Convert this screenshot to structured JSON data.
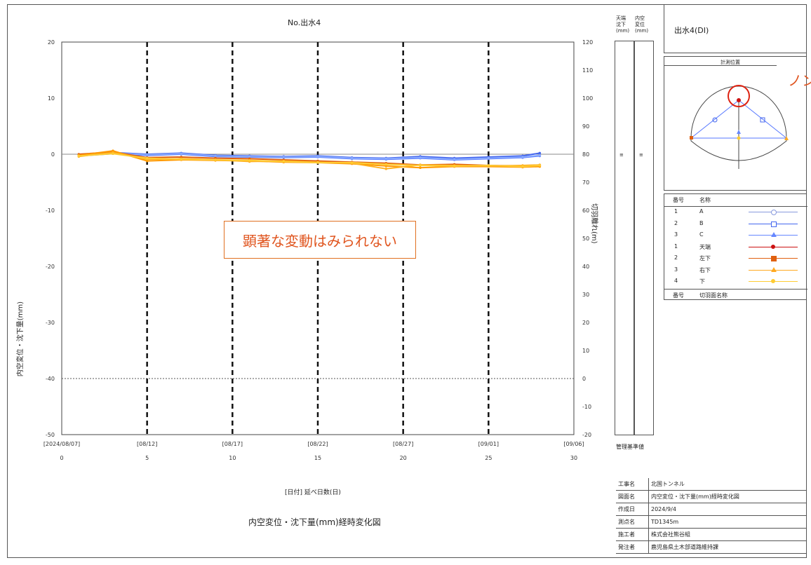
{
  "chart_data": {
    "type": "line",
    "title": "No.出水4",
    "ylabel": "内空変位・沈下量(mm)",
    "y2label": "切羽離れ(m)",
    "xlabel": "[日付] 延べ日数(日)",
    "caption": "内空変位・沈下量(mm)経時変化図",
    "ylim": [
      -50,
      20
    ],
    "yticks": [
      20,
      10,
      0,
      -10,
      -20,
      -30,
      -40,
      -50
    ],
    "y2lim": [
      -20,
      120
    ],
    "y2ticks": [
      120,
      110,
      100,
      90,
      80,
      70,
      60,
      50,
      40,
      30,
      20,
      10,
      0,
      -10,
      -20
    ],
    "xlim": [
      0,
      30
    ],
    "xticks": [
      0,
      5,
      10,
      15,
      20,
      25,
      30
    ],
    "date_ticks": [
      "[2024/08/07]",
      "[08/12]",
      "[08/17]",
      "[08/22]",
      "[08/27]",
      "[09/01]",
      "[09/06]"
    ],
    "vlines": [
      5,
      10,
      15,
      20,
      25
    ],
    "ref_line_y": -40,
    "series": [
      {
        "name": "A",
        "color": "#4466ee",
        "x": [
          1,
          3,
          5,
          7,
          9,
          11,
          13,
          15,
          17,
          19,
          21,
          23,
          25,
          27,
          28
        ],
        "values": [
          -0.2,
          0.3,
          0,
          0.2,
          -0.2,
          -0.3,
          -0.4,
          -0.3,
          -0.6,
          -0.7,
          -0.4,
          -0.7,
          -0.5,
          -0.3,
          0.2
        ]
      },
      {
        "name": "B",
        "color": "#5577ff",
        "x": [
          1,
          3,
          5,
          7,
          9,
          11,
          13,
          15,
          17,
          19,
          21,
          23,
          25,
          27,
          28
        ],
        "values": [
          -0.3,
          0.1,
          -0.2,
          0,
          -0.4,
          -0.5,
          -0.6,
          -0.5,
          -0.8,
          -0.9,
          -0.7,
          -1.0,
          -0.8,
          -0.6,
          -0.3
        ]
      },
      {
        "name": "C",
        "color": "#88aaff",
        "x": [
          1,
          3,
          5,
          7,
          9,
          11,
          13,
          15,
          17,
          19,
          21,
          23,
          25,
          27,
          28
        ],
        "values": [
          -0.1,
          0.2,
          -0.1,
          0.1,
          -0.3,
          -0.4,
          -0.5,
          -0.4,
          -0.7,
          -0.8,
          -0.6,
          -0.9,
          -0.7,
          -0.5,
          -0.2
        ]
      },
      {
        "name": "天端",
        "color": "#e06010",
        "x": [
          1,
          3,
          5,
          7,
          9,
          11,
          13,
          15,
          17,
          19,
          21,
          23,
          25,
          27,
          28
        ],
        "values": [
          0,
          0.4,
          -0.6,
          -0.5,
          -0.7,
          -0.8,
          -1.0,
          -1.2,
          -1.4,
          -1.6,
          -1.9,
          -1.8,
          -2.0,
          -2.1,
          -2.0
        ]
      },
      {
        "name": "左下",
        "color": "#ff9900",
        "x": [
          1,
          3,
          5,
          7,
          9,
          11,
          13,
          15,
          17,
          19,
          21,
          23,
          25,
          27,
          28
        ],
        "values": [
          -0.2,
          0.6,
          -1.2,
          -1.0,
          -1.1,
          -1.2,
          -1.4,
          -1.5,
          -1.7,
          -2.1,
          -2.4,
          -2.2,
          -2.2,
          -2.3,
          -2.2
        ]
      },
      {
        "name": "右下",
        "color": "#ffb020",
        "x": [
          1,
          3,
          5,
          7,
          9,
          11,
          13,
          15,
          17,
          19,
          21,
          23,
          25,
          27,
          28
        ],
        "values": [
          -0.4,
          0.3,
          -0.9,
          -0.8,
          -1.0,
          -1.3,
          -1.2,
          -1.4,
          -1.6,
          -2.6,
          -1.9,
          -2.0,
          -2.1,
          -2.0,
          -1.9
        ]
      },
      {
        "name": "下",
        "color": "#ffcc33",
        "x": [
          1,
          3,
          5,
          7,
          9,
          11,
          13,
          15,
          17,
          19,
          21,
          23,
          25,
          27,
          28
        ],
        "values": [
          -0.3,
          0.1,
          -0.7,
          -0.9,
          -1.0,
          -1.1,
          -1.3,
          -1.5,
          -1.5,
          -1.8,
          -2.0,
          -2.1,
          -2.0,
          -2.2,
          -2.0
        ]
      }
    ],
    "annotation": "顕著な変動はみられない"
  },
  "side": {
    "col1": "天端\n沈下\n(mm)",
    "col2": "内空\n変位\n(mm)",
    "footer": "管理基準値"
  },
  "panel": {
    "title": "出水4(DⅠ)",
    "diagram_title": "計測位置",
    "overlay_text": "ノン",
    "legend_header_no": "番号",
    "legend_header_name": "名称",
    "legend_rows": [
      {
        "no": "1",
        "name": "A",
        "color": "#8899dd",
        "marker": "circle"
      },
      {
        "no": "2",
        "name": "B",
        "color": "#4466ee",
        "marker": "square"
      },
      {
        "no": "3",
        "name": "C",
        "color": "#6688ff",
        "marker": "triangle"
      },
      {
        "no": "1",
        "name": "天端",
        "color": "#cc1111",
        "marker": "dot"
      },
      {
        "no": "2",
        "name": "左下",
        "color": "#e06010",
        "marker": "square"
      },
      {
        "no": "3",
        "name": "右下",
        "color": "#ffaa22",
        "marker": "triangle"
      },
      {
        "no": "4",
        "name": "下",
        "color": "#ffcc33",
        "marker": "dot"
      }
    ],
    "legend_footer_no": "番号",
    "legend_footer_name": "切羽面名称"
  },
  "info": [
    {
      "key": "工事名",
      "value": "北国トンネル"
    },
    {
      "key": "図面名",
      "value": "内空変位・沈下量(mm)経時変化図"
    },
    {
      "key": "作成日",
      "value": "2024/9/4"
    },
    {
      "key": "測点名",
      "value": "TD1345m"
    },
    {
      "key": "施工者",
      "value": "株式会社熊谷組"
    },
    {
      "key": "発注者",
      "value": "鹿児島県土木部道路維持課"
    }
  ]
}
